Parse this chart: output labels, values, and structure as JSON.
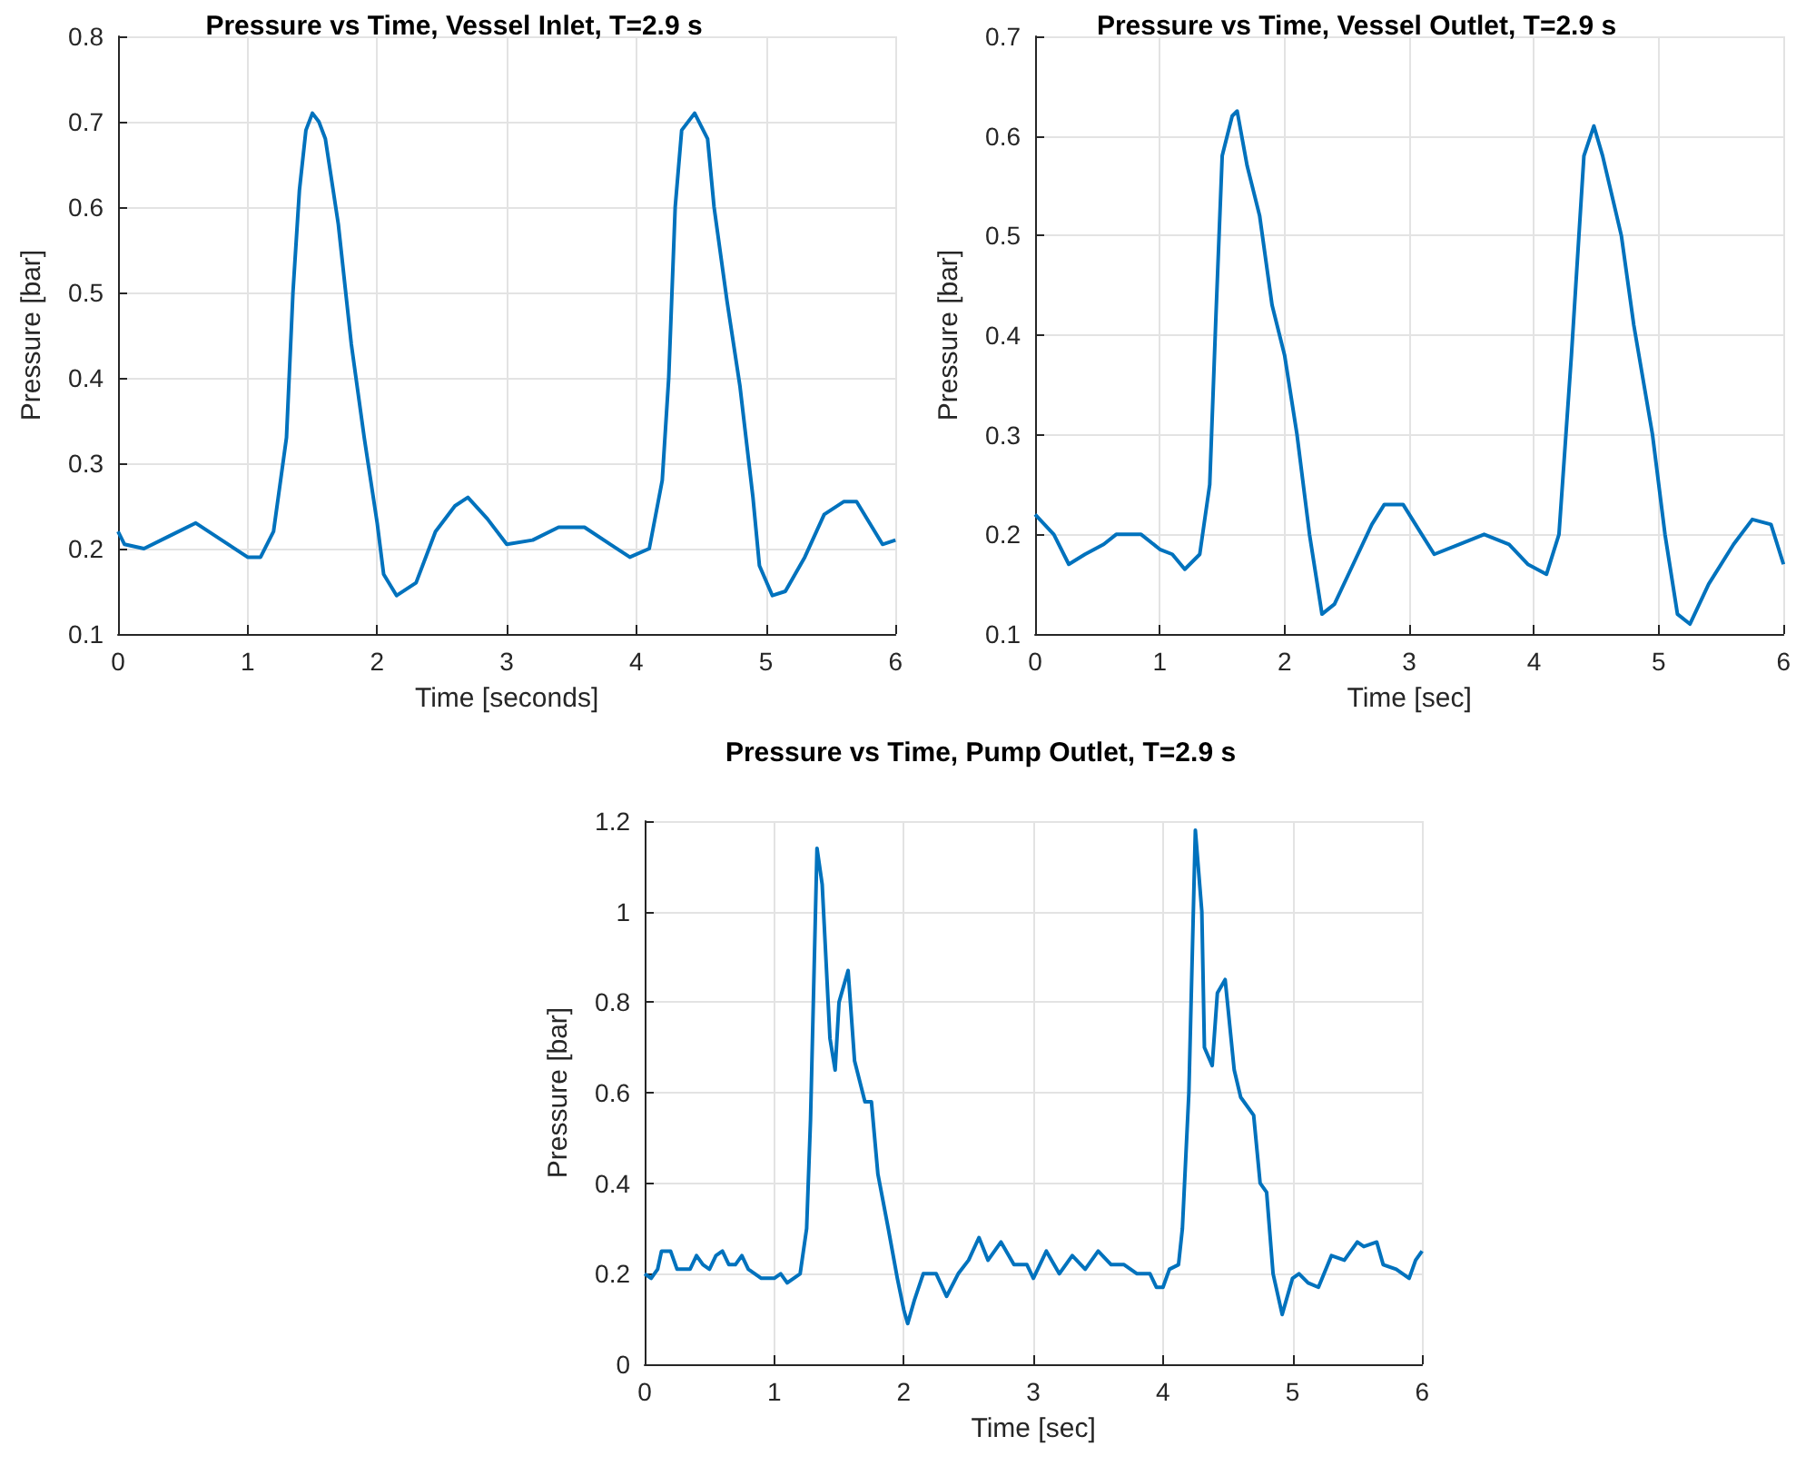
{
  "chart_data": [
    {
      "type": "line",
      "title": "Pressure vs Time, Vessel Inlet, T=2.9 s",
      "xlabel": "Time [seconds]",
      "ylabel": "Pressure [bar]",
      "xlim": [
        0,
        6
      ],
      "xticks": [
        0,
        1,
        2,
        3,
        4,
        5,
        6
      ],
      "ylim": [
        0.1,
        0.8
      ],
      "yticks": [
        0.1,
        0.2,
        0.3,
        0.4,
        0.5,
        0.6,
        0.7,
        0.8
      ],
      "grid": true,
      "marker": "none",
      "line_style": "solid",
      "series": [
        {
          "color": "#0072bd",
          "x": [
            0,
            0.05,
            0.2,
            0.4,
            0.6,
            0.8,
            1.0,
            1.1,
            1.2,
            1.3,
            1.35,
            1.4,
            1.45,
            1.5,
            1.55,
            1.6,
            1.7,
            1.8,
            1.9,
            2.0,
            2.05,
            2.15,
            2.3,
            2.45,
            2.6,
            2.7,
            2.85,
            3.0,
            3.2,
            3.4,
            3.6,
            3.8,
            3.95,
            4.1,
            4.2,
            4.25,
            4.3,
            4.35,
            4.45,
            4.55,
            4.6,
            4.7,
            4.8,
            4.9,
            4.95,
            5.05,
            5.15,
            5.3,
            5.45,
            5.6,
            5.7,
            5.8,
            5.9,
            6.0
          ],
          "values": [
            0.22,
            0.205,
            0.2,
            0.215,
            0.23,
            0.21,
            0.19,
            0.19,
            0.22,
            0.33,
            0.5,
            0.62,
            0.69,
            0.71,
            0.7,
            0.68,
            0.58,
            0.44,
            0.33,
            0.23,
            0.17,
            0.145,
            0.16,
            0.22,
            0.25,
            0.26,
            0.235,
            0.205,
            0.21,
            0.225,
            0.225,
            0.205,
            0.19,
            0.2,
            0.28,
            0.4,
            0.6,
            0.69,
            0.71,
            0.68,
            0.6,
            0.49,
            0.39,
            0.26,
            0.18,
            0.145,
            0.15,
            0.19,
            0.24,
            0.255,
            0.255,
            0.23,
            0.205,
            0.21
          ]
        }
      ]
    },
    {
      "type": "line",
      "title": "Pressure vs Time, Vessel Outlet, T=2.9 s",
      "xlabel": "Time [sec]",
      "ylabel": "Pressure [bar]",
      "xlim": [
        0,
        6
      ],
      "xticks": [
        0,
        1,
        2,
        3,
        4,
        5,
        6
      ],
      "ylim": [
        0.1,
        0.7
      ],
      "yticks": [
        0.1,
        0.2,
        0.3,
        0.4,
        0.5,
        0.6,
        0.7
      ],
      "grid": true,
      "marker": "none",
      "line_style": "solid",
      "series": [
        {
          "color": "#0072bd",
          "x": [
            0,
            0.15,
            0.27,
            0.4,
            0.55,
            0.65,
            0.85,
            1.0,
            1.1,
            1.2,
            1.32,
            1.4,
            1.45,
            1.5,
            1.58,
            1.62,
            1.7,
            1.8,
            1.9,
            2.0,
            2.1,
            2.2,
            2.3,
            2.4,
            2.55,
            2.7,
            2.8,
            2.95,
            3.1,
            3.2,
            3.4,
            3.6,
            3.8,
            3.95,
            4.1,
            4.2,
            4.3,
            4.4,
            4.48,
            4.55,
            4.7,
            4.8,
            4.95,
            5.05,
            5.15,
            5.25,
            5.4,
            5.6,
            5.75,
            5.9,
            6.0
          ],
          "values": [
            0.22,
            0.2,
            0.17,
            0.18,
            0.19,
            0.2,
            0.2,
            0.185,
            0.18,
            0.165,
            0.18,
            0.25,
            0.42,
            0.58,
            0.62,
            0.625,
            0.57,
            0.52,
            0.43,
            0.38,
            0.3,
            0.2,
            0.12,
            0.13,
            0.17,
            0.21,
            0.23,
            0.23,
            0.2,
            0.18,
            0.19,
            0.2,
            0.19,
            0.17,
            0.16,
            0.2,
            0.38,
            0.58,
            0.61,
            0.58,
            0.5,
            0.41,
            0.3,
            0.2,
            0.12,
            0.11,
            0.15,
            0.19,
            0.215,
            0.21,
            0.17
          ]
        }
      ]
    },
    {
      "type": "line",
      "title": "Pressure vs Time, Pump Outlet, T=2.9 s",
      "xlabel": "Time [sec]",
      "ylabel": "Pressure [bar]",
      "xlim": [
        0,
        6
      ],
      "xticks": [
        0,
        1,
        2,
        3,
        4,
        5,
        6
      ],
      "ylim": [
        0,
        1.2
      ],
      "yticks": [
        0,
        0.2,
        0.4,
        0.6,
        0.8,
        1,
        1.2
      ],
      "grid": true,
      "marker": "none",
      "line_style": "solid",
      "series": [
        {
          "color": "#0072bd",
          "x": [
            0,
            0.05,
            0.1,
            0.13,
            0.2,
            0.25,
            0.35,
            0.4,
            0.45,
            0.5,
            0.55,
            0.6,
            0.65,
            0.7,
            0.75,
            0.8,
            0.9,
            1.0,
            1.05,
            1.1,
            1.2,
            1.25,
            1.28,
            1.33,
            1.37,
            1.43,
            1.47,
            1.5,
            1.57,
            1.62,
            1.7,
            1.75,
            1.8,
            1.88,
            1.95,
            2.0,
            2.03,
            2.08,
            2.15,
            2.25,
            2.33,
            2.42,
            2.5,
            2.58,
            2.65,
            2.75,
            2.85,
            2.95,
            3.0,
            3.05,
            3.1,
            3.2,
            3.3,
            3.4,
            3.5,
            3.6,
            3.7,
            3.8,
            3.9,
            3.95,
            4.0,
            4.05,
            4.12,
            4.15,
            4.2,
            4.25,
            4.3,
            4.32,
            4.38,
            4.42,
            4.48,
            4.55,
            4.6,
            4.7,
            4.75,
            4.8,
            4.85,
            4.92,
            5.0,
            5.05,
            5.12,
            5.2,
            5.3,
            5.4,
            5.5,
            5.55,
            5.65,
            5.7,
            5.8,
            5.85,
            5.9,
            5.95,
            6.0
          ],
          "values": [
            0.2,
            0.19,
            0.21,
            0.25,
            0.25,
            0.21,
            0.21,
            0.24,
            0.22,
            0.21,
            0.24,
            0.25,
            0.22,
            0.22,
            0.24,
            0.21,
            0.19,
            0.19,
            0.2,
            0.18,
            0.2,
            0.3,
            0.54,
            1.14,
            1.06,
            0.72,
            0.65,
            0.8,
            0.87,
            0.67,
            0.58,
            0.58,
            0.42,
            0.3,
            0.19,
            0.12,
            0.09,
            0.14,
            0.2,
            0.2,
            0.15,
            0.2,
            0.23,
            0.28,
            0.23,
            0.27,
            0.22,
            0.22,
            0.19,
            0.22,
            0.25,
            0.2,
            0.24,
            0.21,
            0.25,
            0.22,
            0.22,
            0.2,
            0.2,
            0.17,
            0.17,
            0.21,
            0.22,
            0.3,
            0.6,
            1.18,
            1.0,
            0.7,
            0.66,
            0.82,
            0.85,
            0.65,
            0.59,
            0.55,
            0.4,
            0.38,
            0.2,
            0.11,
            0.19,
            0.2,
            0.18,
            0.17,
            0.24,
            0.23,
            0.27,
            0.26,
            0.27,
            0.22,
            0.21,
            0.2,
            0.19,
            0.23,
            0.25
          ]
        }
      ]
    }
  ]
}
